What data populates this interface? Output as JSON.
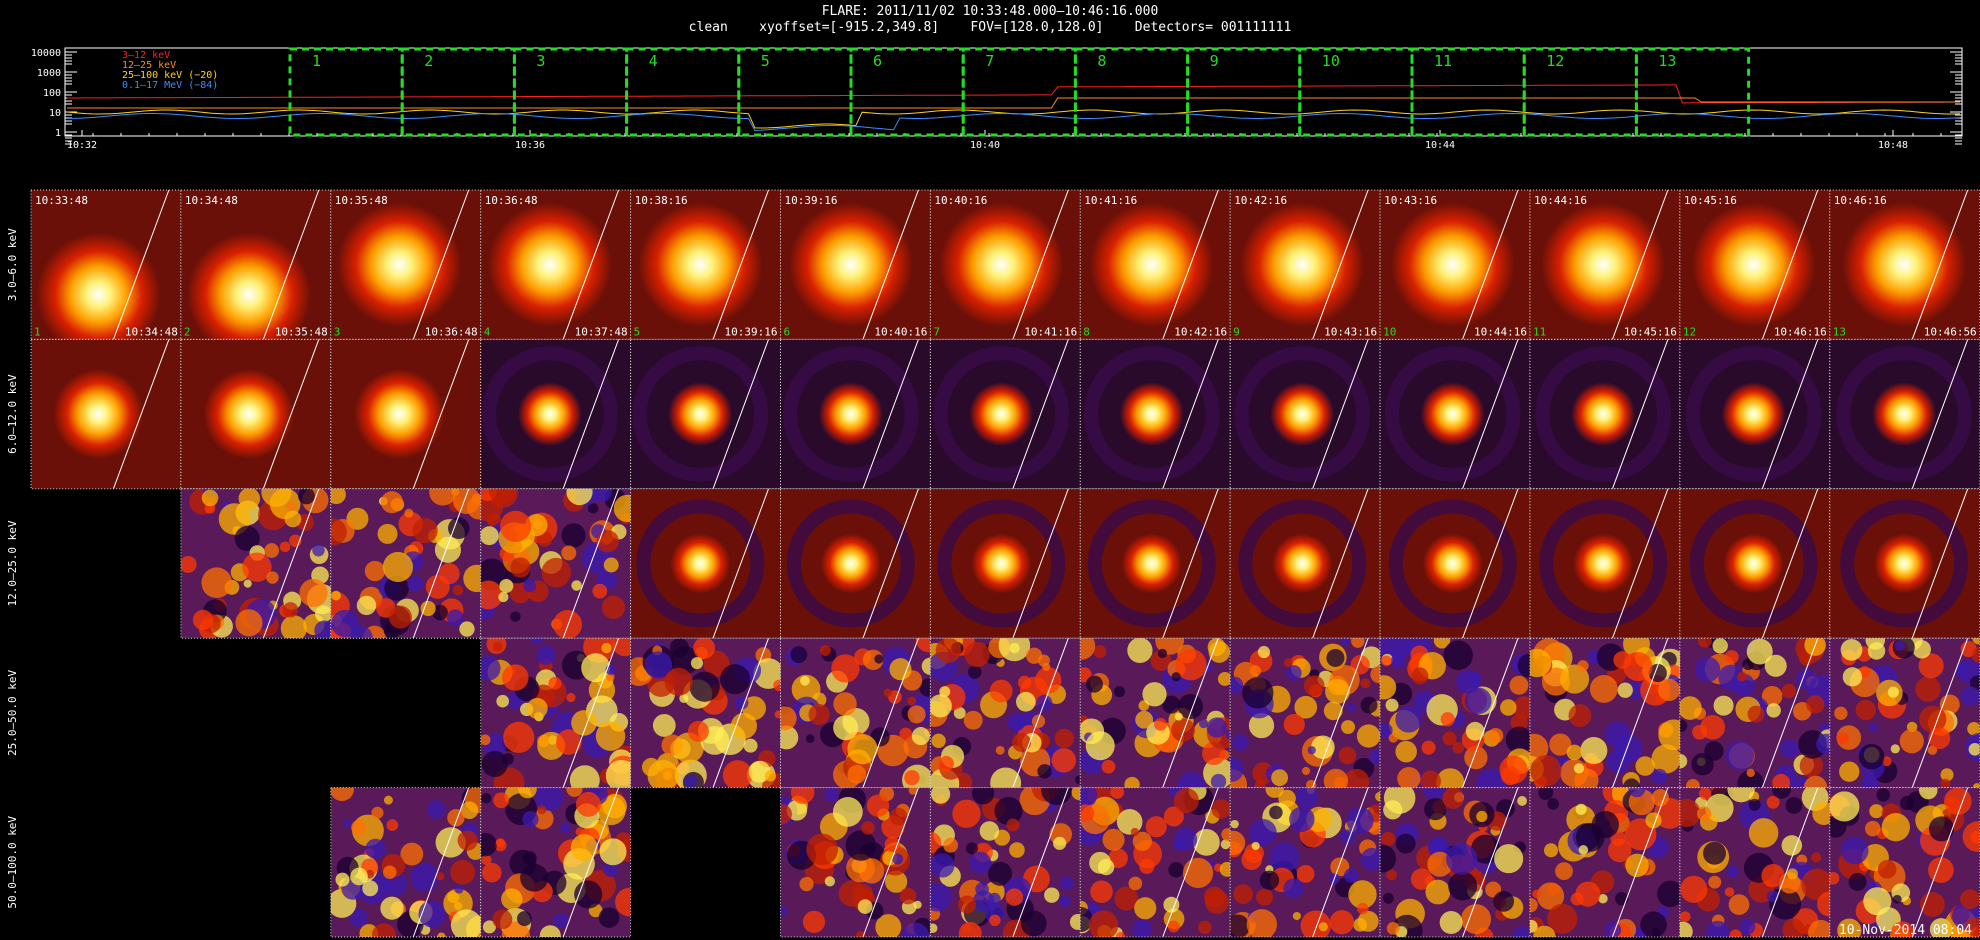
{
  "header": {
    "line1": "FLARE: 2011/11/02 10:33:48.000–10:46:16.000",
    "line2": "clean    xyoffset=[-915.2,349.8]    FOV=[128.0,128.0]    Detectors= 001111111"
  },
  "lightcurve": {
    "y_ticks": [
      "10000",
      "1000",
      "100",
      "10",
      "1"
    ],
    "x_ticks": [
      "10:32",
      "10:36",
      "10:40",
      "10:44",
      "10:48"
    ],
    "legend": [
      {
        "label": "3–12 keV",
        "color": "#ff2020"
      },
      {
        "label": "12–25 keV",
        "color": "#ff8c1a"
      },
      {
        "label": "25–100 keV (−20)",
        "color": "#ffd21a"
      },
      {
        "label": "0.1–17 MeV (−84)",
        "color": "#3a8cff"
      }
    ],
    "interval_labels": [
      "1",
      "2",
      "3",
      "4",
      "5",
      "6",
      "7",
      "8",
      "9",
      "10",
      "11",
      "12",
      "13"
    ],
    "interval_color": "#22dd22"
  },
  "rows": [
    {
      "label": "3.0–6.0 keV",
      "first_col": 0
    },
    {
      "label": "6.0–12.0 keV",
      "first_col": 0
    },
    {
      "label": "12.0–25.0 keV",
      "first_col": 1
    },
    {
      "label": "25.0–50.0 keV",
      "first_col": 3
    },
    {
      "label": "50.0–100.0 keV",
      "first_col": 2,
      "missing_cols": [
        4
      ]
    }
  ],
  "columns": [
    {
      "start": "10:33:48",
      "end": "10:34:48",
      "index": "1"
    },
    {
      "start": "10:34:48",
      "end": "10:35:48",
      "index": "2"
    },
    {
      "start": "10:35:48",
      "end": "10:36:48",
      "index": "3"
    },
    {
      "start": "10:36:48",
      "end": "10:37:48",
      "index": "4"
    },
    {
      "start": "10:38:16",
      "end": "10:39:16",
      "index": "5"
    },
    {
      "start": "10:39:16",
      "end": "10:40:16",
      "index": "6"
    },
    {
      "start": "10:40:16",
      "end": "10:41:16",
      "index": "7"
    },
    {
      "start": "10:41:16",
      "end": "10:42:16",
      "index": "8"
    },
    {
      "start": "10:42:16",
      "end": "10:43:16",
      "index": "9"
    },
    {
      "start": "10:43:16",
      "end": "10:44:16",
      "index": "10"
    },
    {
      "start": "10:44:16",
      "end": "10:45:16",
      "index": "11"
    },
    {
      "start": "10:45:16",
      "end": "10:46:16",
      "index": "12"
    },
    {
      "start": "10:46:16",
      "end": "10:46:56",
      "index": "13"
    }
  ],
  "footer": "10-Nov-2014 08:04"
}
